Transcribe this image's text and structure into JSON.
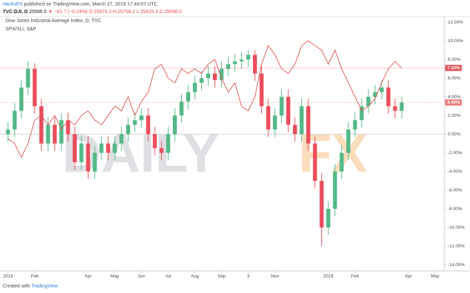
{
  "header": {
    "author": "HanksFX",
    "published": "published on TradingView.com, March 27, 2019 17:44:07 UTC",
    "symbol": [
      "TVC:DJI, D",
      "25596.0",
      "▼ −61.7 (−0.24%)",
      "O:25676.3",
      "H:25758.2",
      "L:25425.3",
      "C:25596.0"
    ]
  },
  "footer": {
    "created": "Created with",
    "brand": "TradingView"
  },
  "watermark": [
    "DAILY",
    "FX"
  ],
  "chart_data": {
    "type": "candlestick",
    "legend": [
      "Dow Jones Industrial Average Index, D, TVC",
      "SPX/XLI, S&P"
    ],
    "x": [
      0,
      0.25,
      0.5,
      0.75,
      1,
      1.25,
      1.5,
      1.75,
      2,
      2.25,
      2.5,
      2.75,
      3,
      3.25,
      3.5,
      3.75,
      4,
      4.25,
      4.5,
      4.75,
      5,
      5.25,
      5.5,
      5.75,
      6,
      6.25,
      6.5,
      6.75,
      7,
      7.25,
      7.5,
      7.75,
      8,
      8.25,
      8.5,
      8.75,
      9,
      9.25,
      9.5,
      9.75,
      10,
      10.25,
      10.5,
      10.75,
      11,
      11.25,
      11.5,
      11.75,
      12,
      12.25,
      12.5,
      12.75,
      13,
      13.25,
      13.5,
      13.75,
      14,
      14.25,
      14.5,
      14.75
    ],
    "candles": {
      "up_color": "#53b987",
      "down_color": "#eb4d5c",
      "open": [
        0,
        0.5,
        2.5,
        5,
        7,
        3,
        -1,
        1,
        -1,
        1.5,
        0,
        -3,
        -1,
        -4,
        -2,
        -1,
        -2,
        -1,
        0,
        1,
        1.5,
        2,
        0,
        -1.5,
        -2,
        0,
        2,
        3.5,
        4.5,
        5.5,
        6,
        6.5,
        5.8,
        7,
        7.5,
        7.8,
        8,
        8.5,
        6.5,
        3,
        0.5,
        2,
        4,
        1,
        0,
        3,
        -1,
        -5,
        -10,
        -8,
        -4,
        -2,
        0.5,
        1.5,
        3,
        4,
        4.5,
        5,
        3,
        2.5
      ],
      "high": [
        1.3,
        3.3,
        5.8,
        7.8,
        7.6,
        3.8,
        1.8,
        1.8,
        2.3,
        2.3,
        0.8,
        -0.2,
        -0.2,
        -1.2,
        -0.2,
        -0.2,
        -0.2,
        0.8,
        1.8,
        2.3,
        2.8,
        2.8,
        0.8,
        -0.7,
        0.8,
        2.8,
        4.3,
        5.3,
        6.3,
        6.8,
        7.3,
        7.3,
        7.8,
        8.3,
        8.6,
        8.8,
        9,
        9,
        7.3,
        3.8,
        2.8,
        4.8,
        4.8,
        1.8,
        3.8,
        3.8,
        -0.2,
        -4.2,
        -7.2,
        -3.2,
        -1.2,
        1.3,
        2.3,
        3.8,
        4.8,
        5.3,
        5.8,
        5.8,
        3.8,
        4
      ],
      "low": [
        -0.8,
        -0.3,
        1.7,
        4.2,
        2.2,
        -1.8,
        -1.8,
        -1.8,
        -1.8,
        -0.8,
        -3.8,
        -3.8,
        -4.8,
        -4.8,
        -2.8,
        -2.8,
        -2.8,
        -1.8,
        -0.8,
        0.2,
        0.7,
        -0.8,
        -2.3,
        -2.8,
        -2.8,
        -0.8,
        1.2,
        2.7,
        3.7,
        4.7,
        5.2,
        5,
        5,
        6.2,
        6.7,
        7,
        7.2,
        5.7,
        2.2,
        -0.3,
        -0.3,
        1.2,
        0.2,
        -0.8,
        -0.8,
        -1.8,
        -5.8,
        -12,
        -10.8,
        -8.8,
        -4.8,
        -2.8,
        -0.3,
        0.7,
        2.2,
        3.2,
        3.7,
        2.2,
        1.7,
        1.7
      ],
      "close": [
        0.5,
        2.5,
        5,
        7,
        3,
        -1,
        1,
        -1,
        1.5,
        0,
        -3,
        -1,
        -4,
        -2,
        -1,
        -2,
        -1,
        0,
        1,
        1.5,
        2,
        0,
        -1.5,
        -2,
        0,
        2,
        3.5,
        4.5,
        5.5,
        6,
        6.5,
        5.8,
        7,
        7.5,
        7.8,
        8,
        8.5,
        6.5,
        3,
        0.5,
        2,
        4,
        1,
        0,
        3,
        -1,
        -5,
        -10,
        -8,
        -4,
        -2,
        0.5,
        1.5,
        3,
        4,
        4.5,
        5,
        3,
        2.5,
        3.4
      ]
    },
    "series": [
      {
        "name": "SPX/XLI",
        "color": "#e05a5a",
        "values": [
          -0.5,
          -1,
          -2.5,
          -1,
          1.5,
          2,
          1,
          2,
          0.5,
          1.5,
          1,
          2,
          2.5,
          1.5,
          1,
          2,
          3,
          2.5,
          4,
          2,
          3.5,
          4.5,
          7,
          7.5,
          6,
          5.5,
          7,
          6.5,
          7,
          6.5,
          7.5,
          8,
          6,
          4.5,
          5.5,
          3,
          2.5,
          4,
          7.5,
          9.5,
          8.5,
          7,
          6.5,
          7.5,
          9.5,
          10,
          9.5,
          9,
          7.5,
          9,
          7,
          5.5,
          4,
          2.5,
          3,
          3.8,
          5.5,
          7,
          7.8,
          7.1
        ]
      }
    ],
    "price_tags": [
      {
        "value": 7.1,
        "label": "7.10%",
        "color": "#e05a5a"
      },
      {
        "value": 3.4,
        "label": "3.40%",
        "color": "#f07c7c"
      }
    ],
    "baseline": 0,
    "xlim": [
      -0.3,
      16.35
    ],
    "ylim": [
      -14.65,
      12.6
    ],
    "grid": false,
    "xticks": [
      {
        "value": 0,
        "label": "2018"
      },
      {
        "value": 1,
        "label": "Feb"
      },
      {
        "value": 3,
        "label": "Apr"
      },
      {
        "value": 4,
        "label": "May"
      },
      {
        "value": 5,
        "label": "Jun"
      },
      {
        "value": 6,
        "label": "Jul"
      },
      {
        "value": 7,
        "label": "Aug"
      },
      {
        "value": 8,
        "label": "Sep"
      },
      {
        "value": 9,
        "label": "3"
      },
      {
        "value": 10,
        "label": "Nov"
      },
      {
        "value": 12,
        "label": "2019"
      },
      {
        "value": 13,
        "label": "Feb"
      },
      {
        "value": 15,
        "label": "Apr"
      },
      {
        "value": 16,
        "label": "May"
      }
    ],
    "yticks": [
      {
        "value": 12,
        "label": "12.00%"
      },
      {
        "value": 10,
        "label": "10.00%"
      },
      {
        "value": 8,
        "label": "8.00%"
      },
      {
        "value": 6,
        "label": "6.00%"
      },
      {
        "value": 4,
        "label": "4.00%"
      },
      {
        "value": 2,
        "label": "2.00%"
      },
      {
        "value": 0,
        "label": "0.00%"
      },
      {
        "value": -2,
        "label": "-2.00%"
      },
      {
        "value": -4,
        "label": "-4.00%"
      },
      {
        "value": -6,
        "label": "-6.00%"
      },
      {
        "value": -8,
        "label": "-8.00%"
      },
      {
        "value": -10,
        "label": "-10.00%"
      },
      {
        "value": -12,
        "label": "-12.00%"
      },
      {
        "value": -14,
        "label": "-14.00%"
      }
    ]
  }
}
